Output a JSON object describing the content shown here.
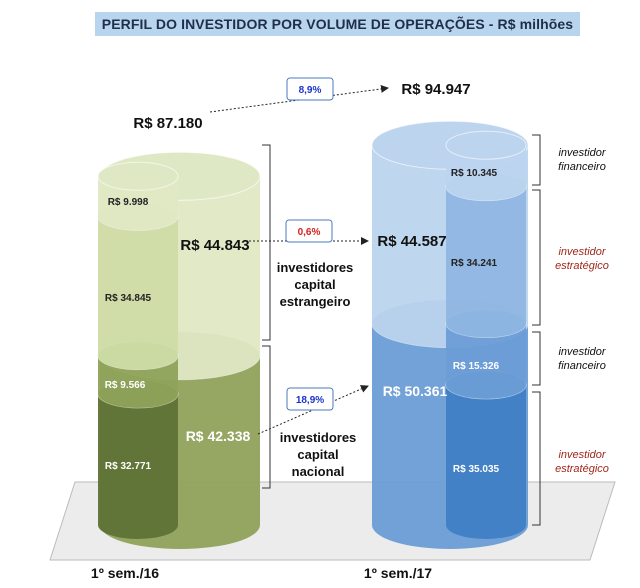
{
  "title": "PERFIL DO INVESTIDOR POR VOLUME DE OPERAÇÕES - R$ milhões",
  "chart_data": {
    "type": "bar",
    "title": "PERFIL DO INVESTIDOR POR VOLUME DE OPERAÇÕES - R$ milhões",
    "categories": [
      "1º sem./16",
      "1º sem./17"
    ],
    "totals": [
      {
        "period": "1º sem./16",
        "value": 87180,
        "label": "R$ 87.180"
      },
      {
        "period": "1º sem./17",
        "value": 94947,
        "label": "R$ 94.947"
      }
    ],
    "groups": [
      {
        "name": "investidores capital estrangeiro",
        "values": [
          44843,
          44587
        ],
        "labels": [
          "R$ 44.843",
          "R$ 44.587"
        ]
      },
      {
        "name": "investidores capital nacional",
        "values": [
          42338,
          50361
        ],
        "labels": [
          "R$ 42.338",
          "R$ 50.361"
        ]
      }
    ],
    "series": [
      {
        "name": "investidor financeiro",
        "group": "estrangeiro",
        "values": [
          9998,
          10345
        ],
        "labels": [
          "R$ 9.998",
          "R$ 10.345"
        ]
      },
      {
        "name": "investidor estratégico",
        "group": "estrangeiro",
        "values": [
          34845,
          34241
        ],
        "labels": [
          "R$ 34.845",
          "R$ 34.241"
        ]
      },
      {
        "name": "investidor financeiro",
        "group": "nacional",
        "values": [
          9566,
          15326
        ],
        "labels": [
          "R$ 9.566",
          "R$ 15.326"
        ]
      },
      {
        "name": "investidor estratégico",
        "group": "nacional",
        "values": [
          32771,
          35035
        ],
        "labels": [
          "R$ 32.771",
          "R$ 35.035"
        ]
      }
    ],
    "changes": [
      {
        "target": "total",
        "label": "8,9%",
        "color": "#1a33cc"
      },
      {
        "target": "estrangeiro",
        "label": "0,6%",
        "color": "#d42020"
      },
      {
        "target": "nacional",
        "label": "18,9%",
        "color": "#1a33cc"
      }
    ],
    "group_labels": [
      [
        "investidores",
        "capital",
        "estrangeiro"
      ],
      [
        "investidores",
        "capital",
        "nacional"
      ]
    ],
    "side_labels": [
      {
        "lines": [
          "investidor",
          "financeiro"
        ],
        "color": "#111111"
      },
      {
        "lines": [
          "investidor",
          "estratégico"
        ],
        "color": "#a0281c"
      },
      {
        "lines": [
          "investidor",
          "financeiro"
        ],
        "color": "#111111"
      },
      {
        "lines": [
          "investidor",
          "estratégico"
        ],
        "color": "#a0281c"
      }
    ],
    "colors": {
      "green_light": "#dfe8c4",
      "green_mid": "#cfdca8",
      "green_dark": "#8fa25a",
      "green_darkest": "#5f7236",
      "blue_light": "#bcd4ee",
      "blue_mid": "#8fb6e2",
      "blue_dark": "#6b9dd6",
      "blue_darkest": "#3f7fc4",
      "change_up": "#1a33cc",
      "change_low": "#d42020"
    }
  }
}
